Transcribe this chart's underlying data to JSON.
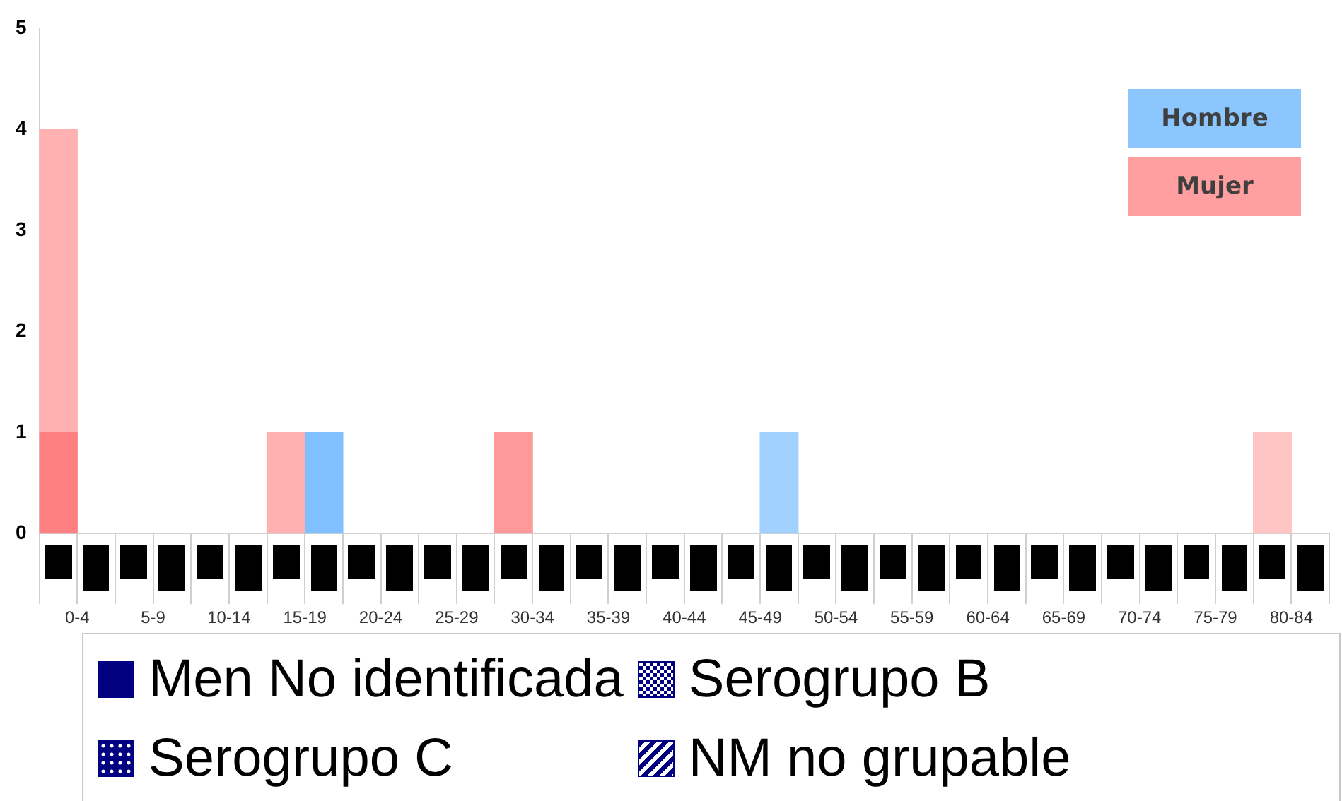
{
  "chart_data": {
    "type": "bar",
    "categories": [
      "0-4",
      null,
      "5-9",
      null,
      "10-14",
      null,
      "15-19",
      null,
      "20-24",
      null,
      "25-29",
      null,
      "30-34",
      null,
      "35-39",
      null,
      "40-44",
      null,
      "45-49",
      null,
      "50-54",
      null,
      "55-59",
      null,
      "60-64",
      null,
      "65-69",
      null,
      "70-74",
      null,
      "75-79",
      null,
      "80-84",
      null
    ],
    "series": [
      {
        "name": "Men No identificada",
        "color": "#000080",
        "colors": [
          "#ff8080",
          "#66b3ff",
          "#ff8080",
          "#66b3ff",
          "#ff8080",
          "#66b3ff",
          "#ff8080",
          "#66b3ff",
          "#ff8080",
          "#66b3ff",
          "#ff8080",
          "#66b3ff",
          "#ff8080",
          "#66b3ff",
          "#ff8080",
          "#66b3ff",
          "#ff8080",
          "#66b3ff",
          "#ff8080",
          "#66b3ff",
          "#ff8080",
          "#66b3ff",
          "#ff8080",
          "#66b3ff",
          "#ff8080",
          "#66b3ff",
          "#ff8080",
          "#66b3ff",
          "#ff8080",
          "#66b3ff",
          "#ff8080",
          "#66b3ff",
          "#ff8080",
          "#66b3ff"
        ],
        "values": [
          1,
          null,
          null,
          null,
          null,
          null,
          null,
          null,
          null,
          null,
          null,
          null,
          null,
          null,
          null,
          null,
          null,
          null,
          null,
          null,
          null,
          null,
          null,
          null,
          null,
          null,
          null,
          null,
          null,
          null,
          null,
          null,
          null,
          null
        ]
      },
      {
        "name": "Serogrupo B",
        "color": "#000080",
        "colors": [
          "#ffb0b0",
          "#a3d1ff",
          "#ffb0b0",
          "#a3d1ff",
          "#ffb0b0",
          "#a3d1ff",
          "#ffb0b0",
          "#a3d1ff",
          "#ffb0b0",
          "#a3d1ff",
          "#ffb0b0",
          "#a3d1ff",
          "#ffb0b0",
          "#a3d1ff",
          "#ffb0b0",
          "#a3d1ff",
          "#ffb0b0",
          "#a3d1ff",
          "#ffb0b0",
          "#a3d1ff",
          "#ffb0b0",
          "#a3d1ff",
          "#ffb0b0",
          "#a3d1ff",
          "#ffb0b0",
          "#a3d1ff",
          "#ffb0b0",
          "#a3d1ff",
          "#ffb0b0",
          "#a3d1ff",
          "#ffb0b0",
          "#a3d1ff",
          "#ffb0b0",
          "#a3d1ff"
        ],
        "values": [
          3,
          null,
          null,
          null,
          null,
          null,
          1,
          null,
          null,
          null,
          null,
          null,
          null,
          null,
          null,
          null,
          null,
          null,
          null,
          1,
          null,
          null,
          null,
          null,
          null,
          null,
          null,
          null,
          null,
          null,
          null,
          null,
          null,
          null
        ]
      },
      {
        "name": "Serogrupo C",
        "color": "#000080",
        "colors": [
          "#ff9999",
          "#80c0ff",
          "#ff9999",
          "#80c0ff",
          "#ff9999",
          "#80c0ff",
          "#ff9999",
          "#80c0ff",
          "#ff9999",
          "#80c0ff",
          "#ff9999",
          "#80c0ff",
          "#ff9999",
          "#80c0ff",
          "#ff9999",
          "#80c0ff",
          "#ff9999",
          "#80c0ff",
          "#ff9999",
          "#80c0ff",
          "#ff9999",
          "#80c0ff",
          "#ff9999",
          "#80c0ff",
          "#ff9999",
          "#80c0ff",
          "#ff9999",
          "#80c0ff",
          "#ff9999",
          "#80c0ff",
          "#ff9999",
          "#80c0ff",
          "#ff9999",
          "#80c0ff"
        ],
        "values": [
          null,
          null,
          null,
          null,
          null,
          null,
          null,
          1,
          null,
          null,
          null,
          null,
          1,
          null,
          null,
          null,
          null,
          null,
          null,
          null,
          null,
          null,
          null,
          null,
          null,
          null,
          null,
          null,
          null,
          null,
          null,
          null,
          null,
          null
        ]
      },
      {
        "name": "NM no grupable",
        "color": "#000080",
        "colors": [
          "#ffc4c4",
          "#bddfff",
          "#ffc4c4",
          "#bddfff",
          "#ffc4c4",
          "#bddfff",
          "#ffc4c4",
          "#bddfff",
          "#ffc4c4",
          "#bddfff",
          "#ffc4c4",
          "#bddfff",
          "#ffc4c4",
          "#bddfff",
          "#ffc4c4",
          "#bddfff",
          "#ffc4c4",
          "#bddfff",
          "#ffc4c4",
          "#bddfff",
          "#ffc4c4",
          "#bddfff",
          "#ffc4c4",
          "#bddfff",
          "#ffc4c4",
          "#bddfff",
          "#ffc4c4",
          "#bddfff",
          "#ffc4c4",
          "#bddfff",
          "#ffc4c4",
          "#bddfff",
          "#ffc4c4",
          "#bddfff"
        ],
        "values": [
          null,
          null,
          null,
          null,
          null,
          null,
          null,
          null,
          null,
          null,
          null,
          null,
          null,
          null,
          null,
          null,
          null,
          null,
          null,
          null,
          null,
          null,
          null,
          null,
          null,
          null,
          null,
          null,
          null,
          null,
          null,
          null,
          1,
          null
        ]
      }
    ],
    "stacked": true,
    "ylim": [
      0,
      5
    ],
    "yticks": [
      0,
      1,
      2,
      3,
      4,
      5
    ],
    "grid": false,
    "legend": "bottom",
    "annotations": [
      "Hombre",
      "Mujer"
    ]
  }
}
